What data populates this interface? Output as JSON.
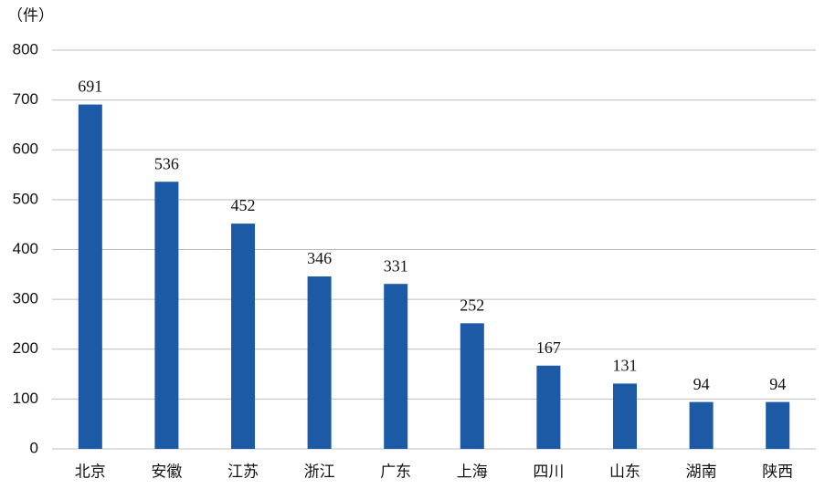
{
  "chart_data": {
    "type": "bar",
    "y_label": "（件）",
    "categories": [
      "北京",
      "安徽",
      "江苏",
      "浙江",
      "广东",
      "上海",
      "四川",
      "山东",
      "湖南",
      "陕西"
    ],
    "values": [
      691,
      536,
      452,
      346,
      331,
      252,
      167,
      131,
      94,
      94
    ],
    "color": "#1c5aa6",
    "ylim": [
      0,
      800
    ],
    "yticks": [
      0,
      100,
      200,
      300,
      400,
      500,
      600,
      700,
      800
    ],
    "grid": true
  }
}
